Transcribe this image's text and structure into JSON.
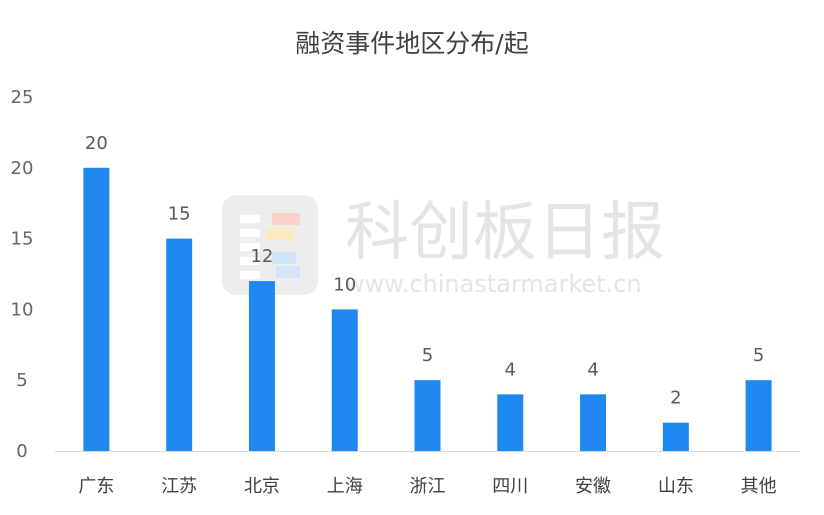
{
  "chart_data": {
    "type": "bar",
    "title": "融资事件地区分布/起",
    "categories": [
      "广东",
      "江苏",
      "北京",
      "上海",
      "浙江",
      "四川",
      "安徽",
      "山东",
      "其他"
    ],
    "values": [
      20,
      15,
      12,
      10,
      5,
      4,
      4,
      2,
      5
    ],
    "value_labels": [
      "20",
      "15",
      "12",
      "10",
      "5",
      "4",
      "4",
      "2",
      "5"
    ],
    "y_ticks": [
      "0",
      "5",
      "10",
      "15",
      "20",
      "25"
    ],
    "ylim": [
      0,
      25
    ],
    "grid": false,
    "legend": "none",
    "bar_color": "#1e88f0",
    "axis_color": "#d9d9d9"
  },
  "watermark": {
    "name": "科创板日报",
    "url": "www.chinastarmarket.cn",
    "color": "#e4e4e4"
  }
}
